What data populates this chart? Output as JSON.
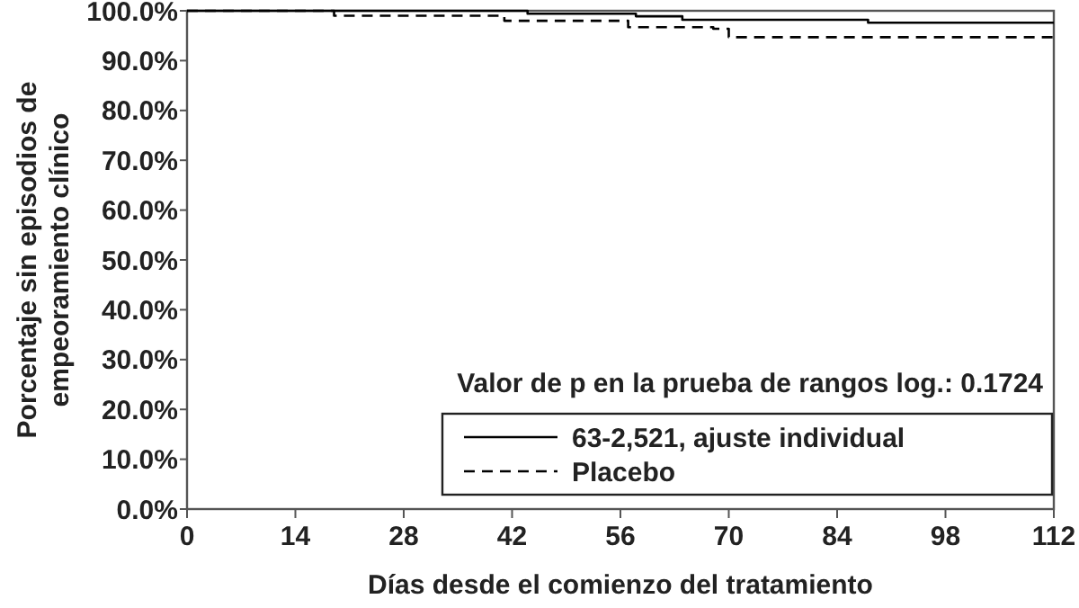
{
  "chart_data": {
    "type": "step",
    "xlabel": "Días desde el comienzo del tratamiento",
    "ylabel": "Porcentaje sin episodios de empeoramiento clínico",
    "annotations": [
      "Valor de p en la prueba de rangos log.: 0.1724"
    ],
    "xlim": [
      0,
      112
    ],
    "xticks": [
      0,
      14,
      28,
      42,
      56,
      70,
      84,
      98,
      112
    ],
    "ylim": [
      0,
      100
    ],
    "yticks": [
      {
        "value": 0,
        "label": "0.0%"
      },
      {
        "value": 10,
        "label": "10.0%"
      },
      {
        "value": 20,
        "label": "20.0%"
      },
      {
        "value": 30,
        "label": "30.0%"
      },
      {
        "value": 40,
        "label": "40.0%"
      },
      {
        "value": 50,
        "label": "50.0%"
      },
      {
        "value": 60,
        "label": "60.0%"
      },
      {
        "value": 70,
        "label": "70.0%"
      },
      {
        "value": 80,
        "label": "80.0%"
      },
      {
        "value": 90,
        "label": "90.0%"
      },
      {
        "value": 100,
        "label": "100.0%"
      }
    ],
    "legend": "bottom right",
    "grid": false,
    "series": [
      {
        "name": "63-2,521, ajuste individual",
        "color": "#000000",
        "line_style": "solid",
        "x": [
          0,
          44,
          58,
          64,
          88,
          112
        ],
        "values": [
          100,
          99.4,
          98.9,
          98.2,
          97.6,
          97.6
        ]
      },
      {
        "name": "Placebo",
        "color": "#000000",
        "line_style": "dashed",
        "x": [
          0,
          19,
          41,
          57,
          68,
          70,
          112
        ],
        "values": [
          100,
          99,
          98,
          96.7,
          96.4,
          94.7,
          94.7
        ]
      }
    ]
  }
}
